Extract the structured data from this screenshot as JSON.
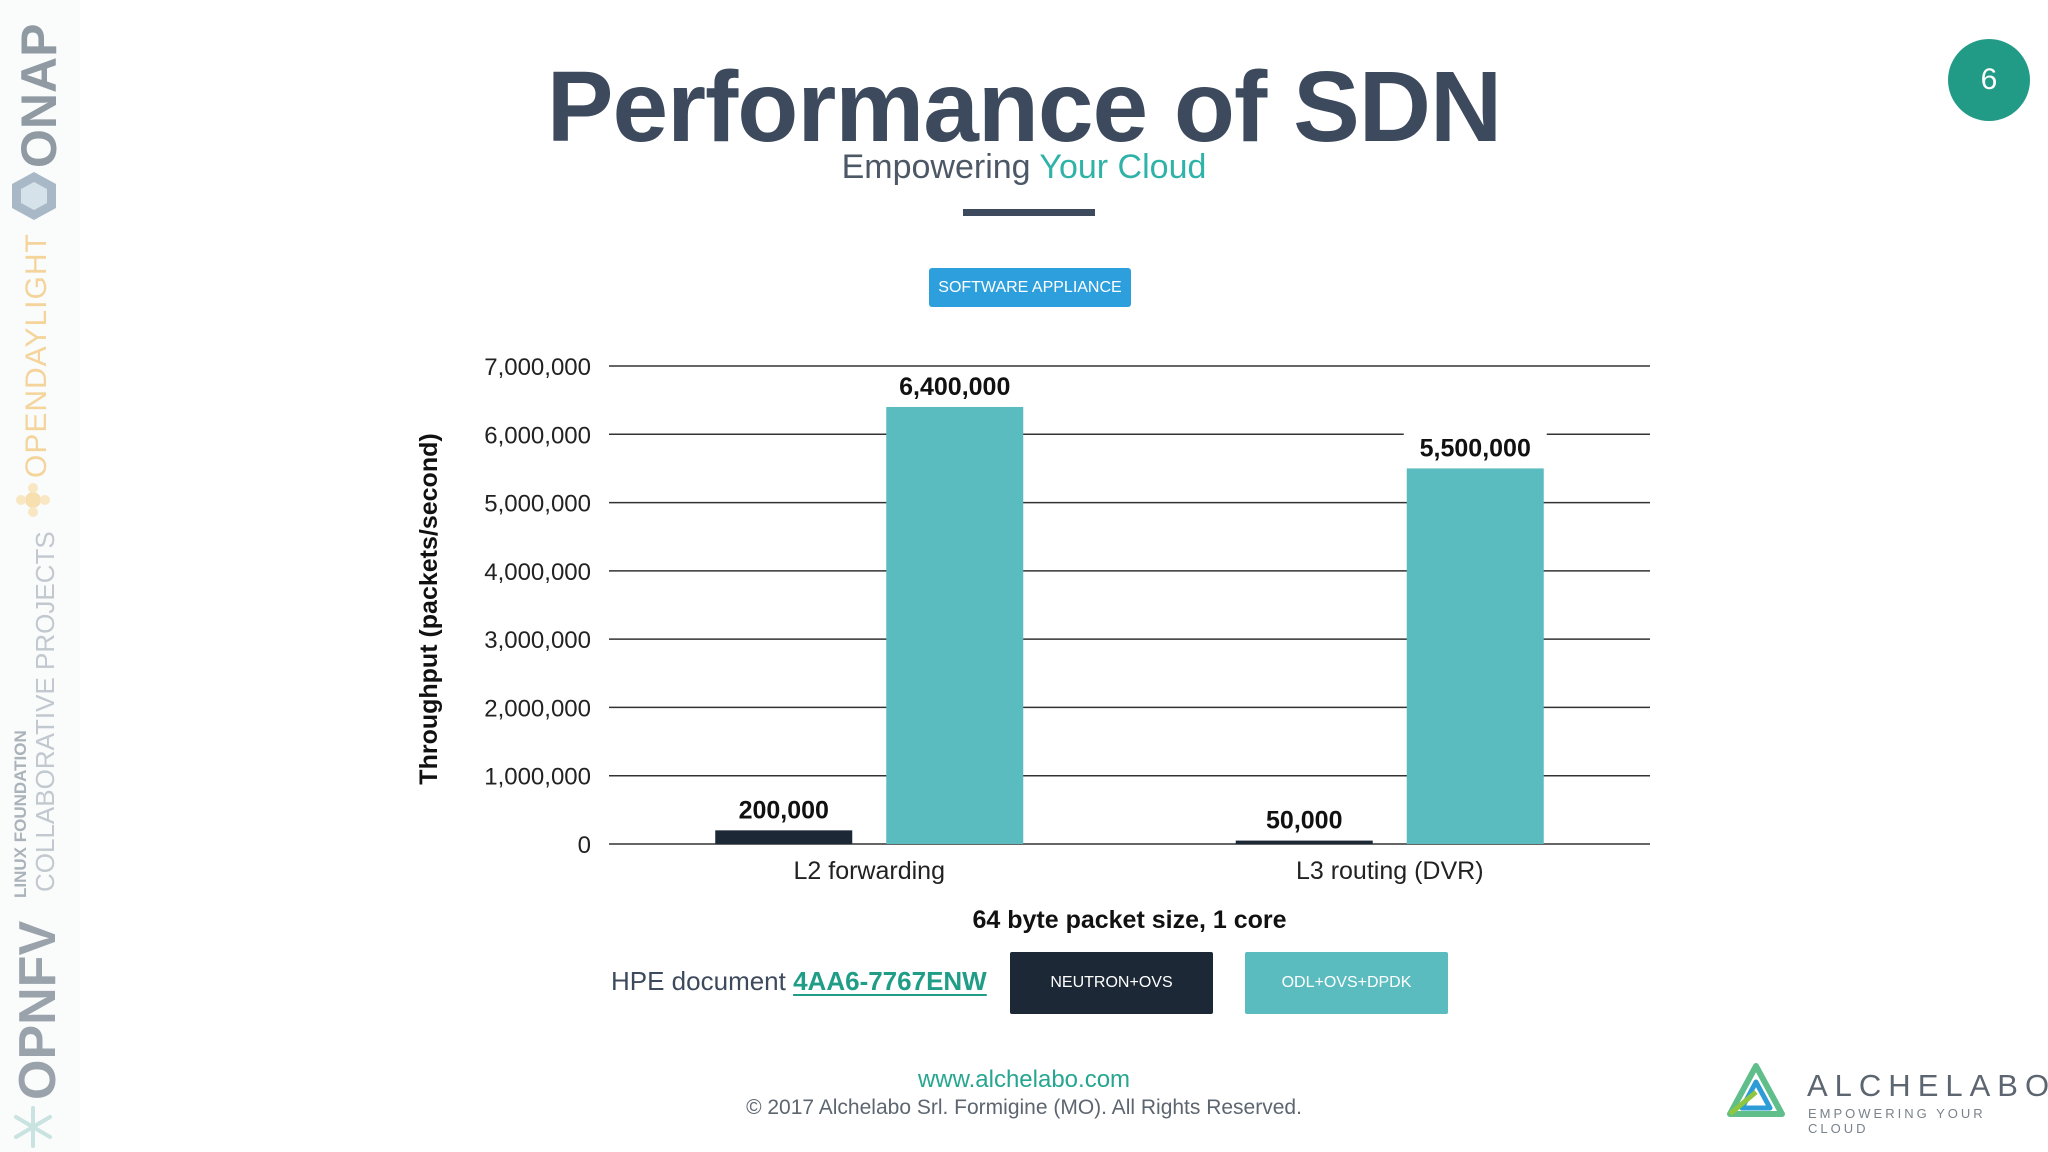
{
  "slide": {
    "title": "Performance of SDN",
    "subtitle_prefix": "Empowering ",
    "subtitle_accent": "Your Cloud",
    "page_number": "6",
    "badge": "SOFTWARE APPLIANCE"
  },
  "sidebar": {
    "logos": [
      "ONAP",
      "OPENDAYLIGHT",
      "LINUX FOUNDATION",
      "COLLABORATIVE PROJECTS",
      "OPNFV"
    ]
  },
  "chart_data": {
    "type": "bar",
    "categories": [
      "L2 forwarding",
      "L3 routing (DVR)"
    ],
    "series": [
      {
        "name": "NEUTRON+OVS",
        "values": [
          200000,
          50000
        ],
        "color": "#1c2836"
      },
      {
        "name": "ODL+OVS+DPDK",
        "values": [
          6400000,
          5500000
        ],
        "color": "#5bbcbf"
      }
    ],
    "data_labels": [
      [
        "200,000",
        "6,400,000"
      ],
      [
        "50,000",
        "5,500,000"
      ]
    ],
    "ylim": [
      0,
      7000000
    ],
    "yticks": [
      0,
      1000000,
      2000000,
      3000000,
      4000000,
      5000000,
      6000000,
      7000000
    ],
    "ytick_labels": [
      "0",
      "1,000,000",
      "2,000,000",
      "3,000,000",
      "4,000,000",
      "5,000,000",
      "6,000,000",
      "7,000,000"
    ],
    "ylabel": "Throughput (packets/second)",
    "xlabel": "64 byte packet size, 1 core",
    "grid": true,
    "legend_placement": "bottom"
  },
  "reference": {
    "prefix": "HPE document ",
    "link_text": "4AA6-7767ENW"
  },
  "footer": {
    "url": "www.alchelabo.com",
    "copyright": "© 2017 Alchelabo Srl. Formigine (MO). All Rights Reserved."
  },
  "brand": {
    "name": "ALCHELABO",
    "tagline": "EMPOWERING YOUR CLOUD"
  }
}
